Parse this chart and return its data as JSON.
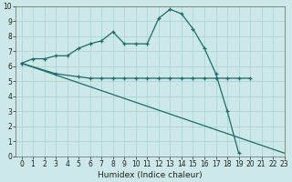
{
  "xlabel": "Humidex (Indice chaleur)",
  "xlim": [
    -0.5,
    23
  ],
  "ylim": [
    0,
    10
  ],
  "background_color": "#cce8e8",
  "grid_color": "#aacfcf",
  "line_color": "#1e6b6b",
  "line1_x": [
    0,
    1,
    2,
    3,
    4,
    5,
    6,
    7,
    8,
    9,
    10,
    11,
    12,
    13,
    14,
    15,
    16,
    17,
    18,
    19
  ],
  "line1_y": [
    6.2,
    6.5,
    6.5,
    6.7,
    6.7,
    7.2,
    7.5,
    7.7,
    8.3,
    7.5,
    7.5,
    7.5,
    9.2,
    9.8,
    9.5,
    8.5,
    7.2,
    5.5,
    3.0,
    0.2
  ],
  "line2_x": [
    0,
    3,
    5,
    6,
    7,
    8,
    9,
    10,
    11,
    12,
    13,
    14,
    15,
    16,
    17,
    18,
    19,
    20
  ],
  "line2_y": [
    6.2,
    5.5,
    5.3,
    5.2,
    5.2,
    5.2,
    5.2,
    5.2,
    5.2,
    5.2,
    5.2,
    5.2,
    5.2,
    5.2,
    5.2,
    5.2,
    5.2,
    5.2
  ],
  "line3_x": [
    0,
    23
  ],
  "line3_y": [
    6.2,
    0.2
  ],
  "xtick_labels": [
    "0",
    "1",
    "2",
    "3",
    "4",
    "5",
    "6",
    "7",
    "8",
    "9",
    "10",
    "11",
    "12",
    "13",
    "14",
    "15",
    "16",
    "17",
    "18",
    "19",
    "20",
    "21",
    "22",
    "23"
  ],
  "ytick_labels": [
    "0",
    "1",
    "2",
    "3",
    "4",
    "5",
    "6",
    "7",
    "8",
    "9",
    "10"
  ],
  "xlabel_fontsize": 6.5,
  "tick_fontsize": 5.5
}
